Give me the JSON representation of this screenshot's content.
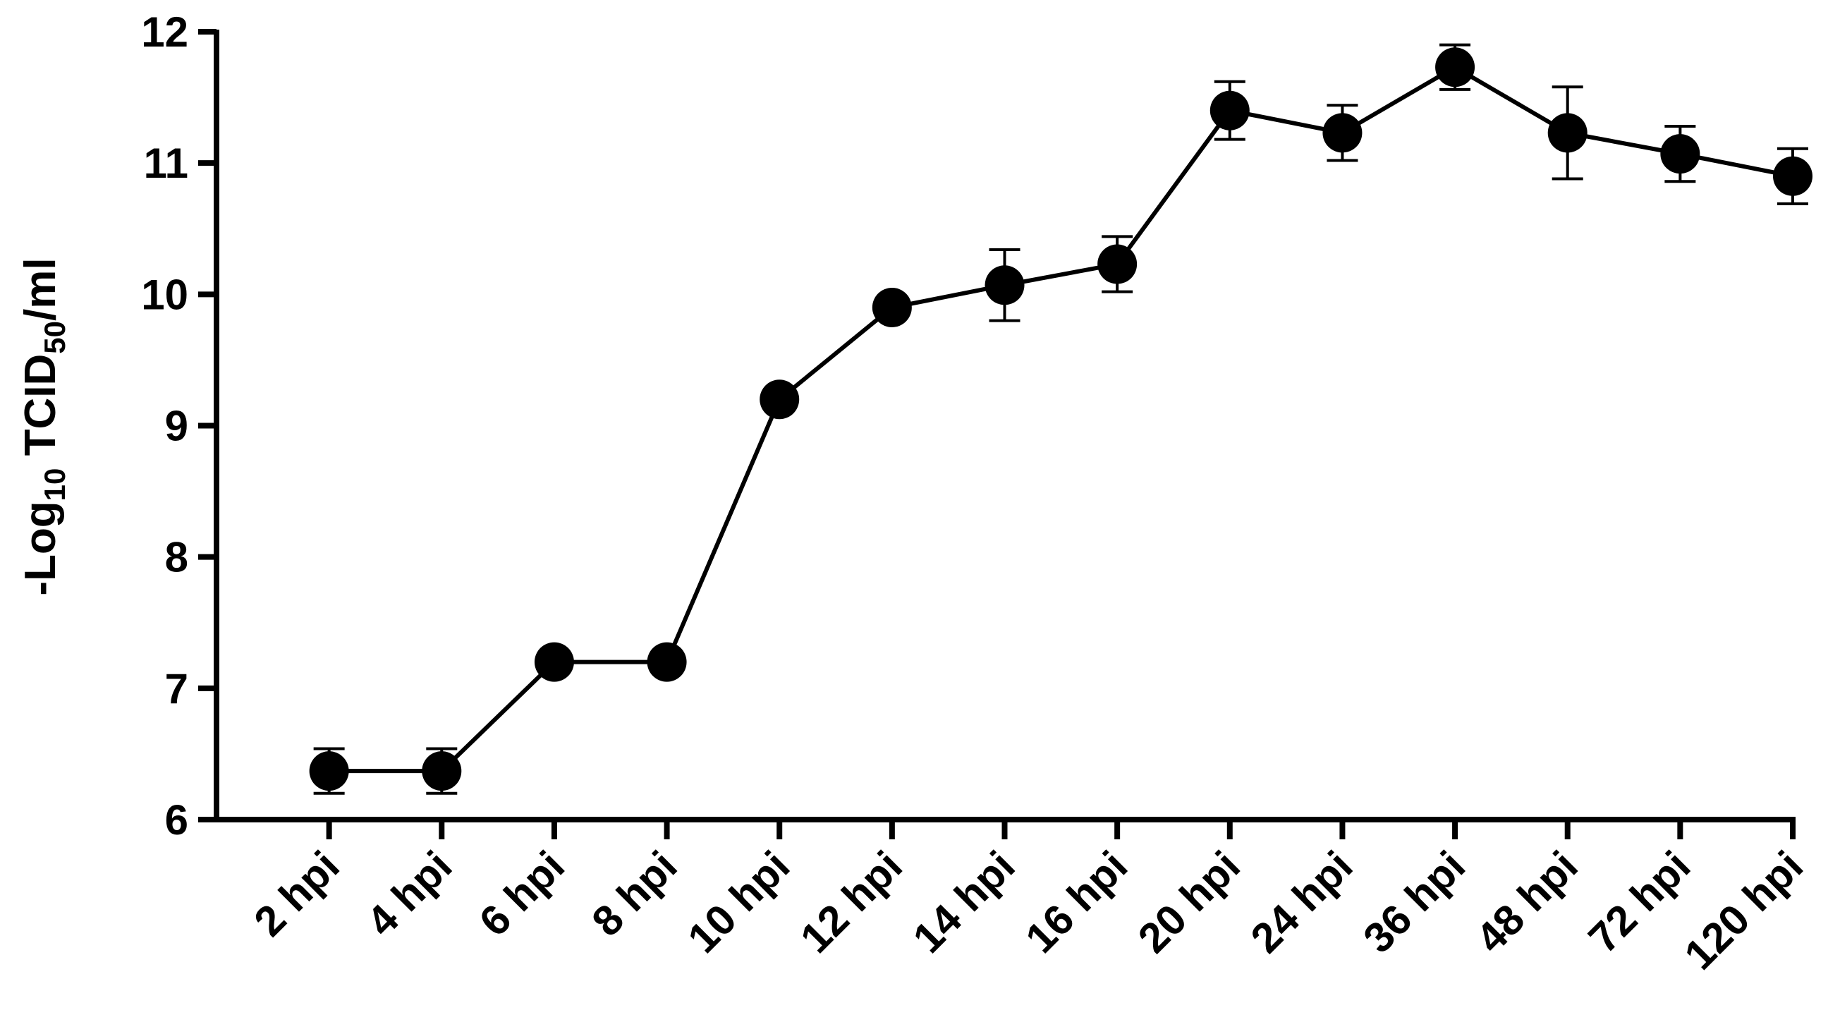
{
  "chart_data": {
    "type": "line",
    "y_label": [
      "-Log",
      "10",
      " TCID",
      "50",
      "/ml"
    ],
    "categories": [
      "2 hpi",
      "4 hpi",
      "6 hpi",
      "8 hpi",
      "10 hpi",
      "12 hpi",
      "14 hpi",
      "16 hpi",
      "20 hpi",
      "24 hpi",
      "36 hpi",
      "48 hpi",
      "72 hpi",
      "120 hpi"
    ],
    "values": [
      6.37,
      6.37,
      7.2,
      7.2,
      9.2,
      9.9,
      10.07,
      10.23,
      11.4,
      11.23,
      11.73,
      11.23,
      11.07,
      10.9
    ],
    "errors": [
      0.17,
      0.17,
      0,
      0,
      0,
      0,
      0.27,
      0.21,
      0.22,
      0.21,
      0.17,
      0.35,
      0.21,
      0.21
    ],
    "color": "#000000",
    "ylim": [
      6,
      12
    ],
    "yticks": [
      6,
      7,
      8,
      9,
      10,
      11,
      12
    ]
  }
}
